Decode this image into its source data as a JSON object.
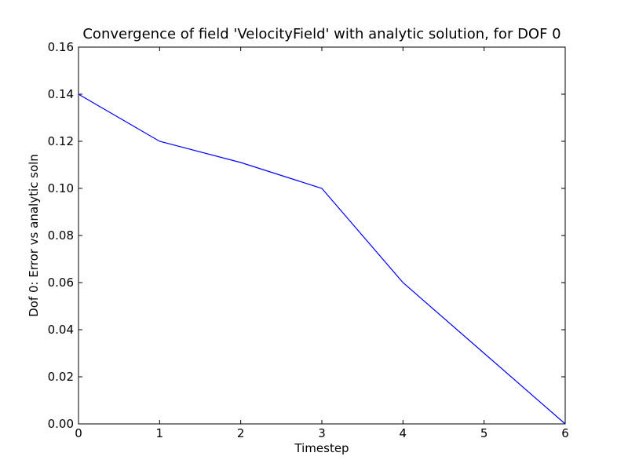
{
  "chart_data": {
    "type": "line",
    "title": "Convergence of field 'VelocityField' with analytic solution, for DOF 0",
    "xlabel": "Timestep",
    "ylabel": "Dof 0: Error vs analytic soln",
    "xlim": [
      0,
      6
    ],
    "ylim": [
      0,
      0.16
    ],
    "xticks": [
      "0",
      "1",
      "2",
      "3",
      "4",
      "5",
      "6"
    ],
    "yticks": [
      "0.00",
      "0.02",
      "0.04",
      "0.06",
      "0.08",
      "0.10",
      "0.12",
      "0.14",
      "0.16"
    ],
    "grid": false,
    "series": [
      {
        "color": "#0000ff",
        "x": [
          0,
          1,
          2,
          3,
          4,
          5,
          6
        ],
        "y": [
          0.14,
          0.12,
          0.111,
          0.1,
          0.06,
          0.03,
          0.0
        ]
      }
    ]
  }
}
